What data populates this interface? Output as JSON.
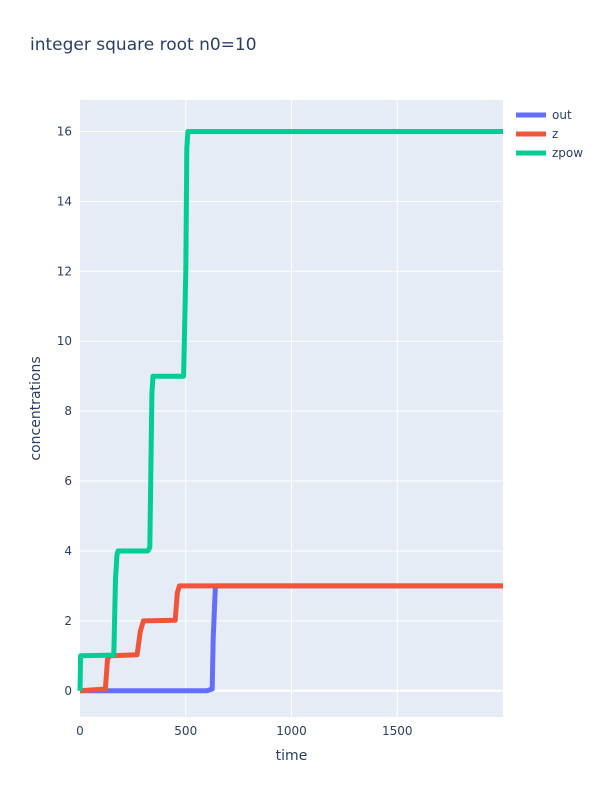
{
  "chart_data": {
    "type": "line",
    "title": "integer square root n0=10",
    "xlabel": "time",
    "ylabel": "concentrations",
    "xlim": [
      0,
      2000
    ],
    "ylim": [
      -0.75,
      16.9
    ],
    "xticks": [
      0,
      500,
      1000,
      1500
    ],
    "xtick_labels": [
      "0",
      "500",
      "1000",
      "1500"
    ],
    "yticks": [
      0,
      2,
      4,
      6,
      8,
      10,
      12,
      14,
      16
    ],
    "ytick_labels": [
      "0",
      "2",
      "4",
      "6",
      "8",
      "10",
      "12",
      "14",
      "16"
    ],
    "grid": true,
    "legend_position": "top-right",
    "plot_background": "#e5ecf6",
    "series": [
      {
        "name": "out",
        "color": "#636efa",
        "x": [
          0,
          100,
          200,
          300,
          400,
          500,
          600,
          625,
          630,
          640,
          800,
          1200,
          1600,
          2000
        ],
        "y": [
          0,
          0,
          0,
          0,
          0,
          0,
          0,
          0.05,
          1.5,
          3,
          3,
          3,
          3,
          3
        ]
      },
      {
        "name": "z",
        "color": "#ef553b",
        "x": [
          0,
          120,
          130,
          140,
          270,
          285,
          300,
          450,
          460,
          470,
          600,
          1000,
          1500,
          2000
        ],
        "y": [
          0,
          0.05,
          0.9,
          1,
          1.03,
          1.7,
          2,
          2.02,
          2.8,
          3,
          3,
          3,
          3,
          3
        ]
      },
      {
        "name": "zpow",
        "color": "#00cc96",
        "x": [
          0,
          3,
          8,
          160,
          168,
          175,
          180,
          320,
          330,
          340,
          345,
          490,
          500,
          505,
          510,
          800,
          1200,
          1600,
          2000
        ],
        "y": [
          0,
          1,
          1,
          1.02,
          3.2,
          3.9,
          4,
          4,
          4.1,
          8.5,
          9,
          9,
          12,
          15.5,
          16,
          16,
          16,
          16,
          16
        ]
      }
    ]
  }
}
